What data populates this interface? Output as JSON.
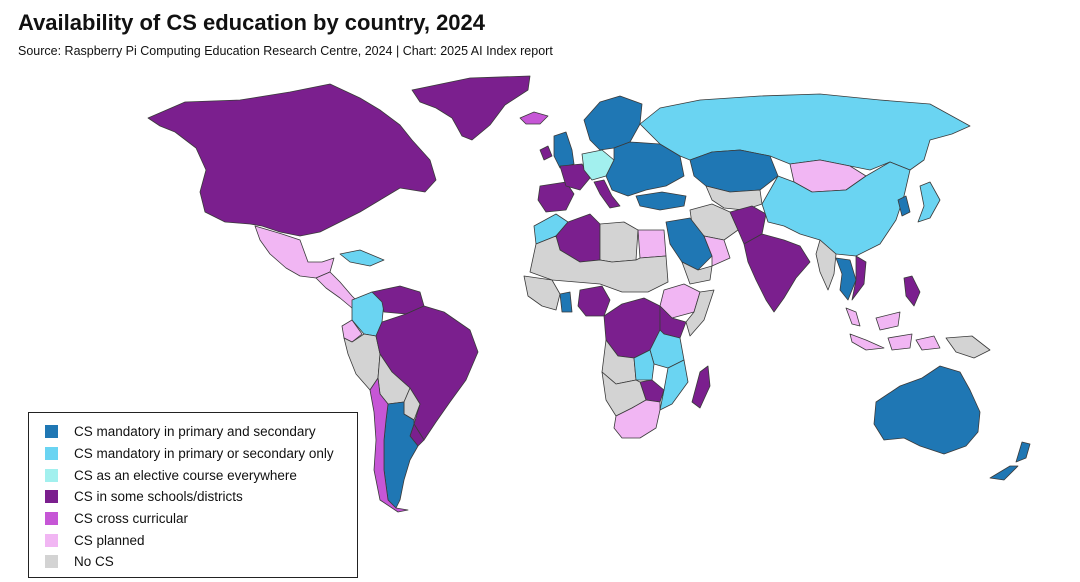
{
  "header": {
    "title": "Availability of CS education by country, 2024",
    "subtitle": "Source: Raspberry Pi Computing Education Research Centre, 2024 | Chart: 2025 AI Index report"
  },
  "legend": {
    "items": [
      {
        "key": "mandatory_both",
        "label": "CS mandatory in primary and secondary",
        "color": "#1f77b4"
      },
      {
        "key": "mandatory_one",
        "label": "CS mandatory in primary or secondary only",
        "color": "#6ad4f2"
      },
      {
        "key": "elective",
        "label": "CS as an elective course everywhere",
        "color": "#a2f0ee"
      },
      {
        "key": "some_schools",
        "label": "CS in some schools/districts",
        "color": "#7b1f8e"
      },
      {
        "key": "cross_curricular",
        "label": "CS cross curricular",
        "color": "#c656d6"
      },
      {
        "key": "planned",
        "label": "CS planned",
        "color": "#f1b6f3"
      },
      {
        "key": "no_cs",
        "label": "No CS",
        "color": "#d3d3d3"
      }
    ]
  },
  "map": {
    "regions": [
      {
        "name": "greenland",
        "category": "some_schools"
      },
      {
        "name": "north-america",
        "category": "some_schools"
      },
      {
        "name": "mexico",
        "category": "planned"
      },
      {
        "name": "central-america",
        "category": "planned"
      },
      {
        "name": "cuba",
        "category": "mandatory_one"
      },
      {
        "name": "colombia",
        "category": "mandatory_one"
      },
      {
        "name": "venezuela",
        "category": "some_schools"
      },
      {
        "name": "ecuador",
        "category": "planned"
      },
      {
        "name": "peru",
        "category": "no_cs"
      },
      {
        "name": "brazil",
        "category": "some_schools"
      },
      {
        "name": "bolivia",
        "category": "no_cs"
      },
      {
        "name": "paraguay",
        "category": "no_cs"
      },
      {
        "name": "uruguay",
        "category": "some_schools"
      },
      {
        "name": "argentina",
        "category": "mandatory_both"
      },
      {
        "name": "chile",
        "category": "cross_curricular"
      },
      {
        "name": "iceland",
        "category": "cross_curricular"
      },
      {
        "name": "uk",
        "category": "mandatory_both"
      },
      {
        "name": "ireland",
        "category": "some_schools"
      },
      {
        "name": "scandinavia",
        "category": "mandatory_both"
      },
      {
        "name": "iberia",
        "category": "some_schools"
      },
      {
        "name": "france",
        "category": "some_schools"
      },
      {
        "name": "central-europe",
        "category": "elective"
      },
      {
        "name": "eastern-europe",
        "category": "mandatory_both"
      },
      {
        "name": "italy",
        "category": "some_schools"
      },
      {
        "name": "turkey",
        "category": "mandatory_both"
      },
      {
        "name": "russia",
        "category": "mandatory_one"
      },
      {
        "name": "kazakhstan",
        "category": "mandatory_both"
      },
      {
        "name": "mongolia",
        "category": "planned"
      },
      {
        "name": "china",
        "category": "mandatory_one"
      },
      {
        "name": "japan",
        "category": "mandatory_one"
      },
      {
        "name": "korea",
        "category": "mandatory_both"
      },
      {
        "name": "central-asia",
        "category": "no_cs"
      },
      {
        "name": "iran",
        "category": "no_cs"
      },
      {
        "name": "afghanistan-pakistan",
        "category": "some_schools"
      },
      {
        "name": "india",
        "category": "some_schools"
      },
      {
        "name": "myanmar",
        "category": "no_cs"
      },
      {
        "name": "thailand",
        "category": "mandatory_both"
      },
      {
        "name": "vietnam",
        "category": "some_schools"
      },
      {
        "name": "malaysia",
        "category": "planned"
      },
      {
        "name": "indonesia",
        "category": "planned"
      },
      {
        "name": "philippines",
        "category": "some_schools"
      },
      {
        "name": "papua-new-guinea",
        "category": "no_cs"
      },
      {
        "name": "saudi-arabia",
        "category": "mandatory_both"
      },
      {
        "name": "oman-uae",
        "category": "planned"
      },
      {
        "name": "yemen",
        "category": "no_cs"
      },
      {
        "name": "morocco",
        "category": "mandatory_one"
      },
      {
        "name": "algeria",
        "category": "some_schools"
      },
      {
        "name": "libya",
        "category": "no_cs"
      },
      {
        "name": "egypt",
        "category": "planned"
      },
      {
        "name": "sahel",
        "category": "no_cs"
      },
      {
        "name": "west-africa",
        "category": "no_cs"
      },
      {
        "name": "ghana",
        "category": "mandatory_both"
      },
      {
        "name": "nigeria",
        "category": "some_schools"
      },
      {
        "name": "ethiopia",
        "category": "planned"
      },
      {
        "name": "somalia",
        "category": "no_cs"
      },
      {
        "name": "central-africa",
        "category": "some_schools"
      },
      {
        "name": "kenya",
        "category": "some_schools"
      },
      {
        "name": "tanzania",
        "category": "mandatory_one"
      },
      {
        "name": "angola",
        "category": "no_cs"
      },
      {
        "name": "zambia",
        "category": "mandatory_one"
      },
      {
        "name": "mozambique",
        "category": "mandatory_one"
      },
      {
        "name": "zimbabwe",
        "category": "some_schools"
      },
      {
        "name": "namibia",
        "category": "no_cs"
      },
      {
        "name": "south-africa",
        "category": "planned"
      },
      {
        "name": "madagascar",
        "category": "some_schools"
      },
      {
        "name": "australia",
        "category": "mandatory_both"
      },
      {
        "name": "new-zealand",
        "category": "mandatory_both"
      }
    ]
  }
}
